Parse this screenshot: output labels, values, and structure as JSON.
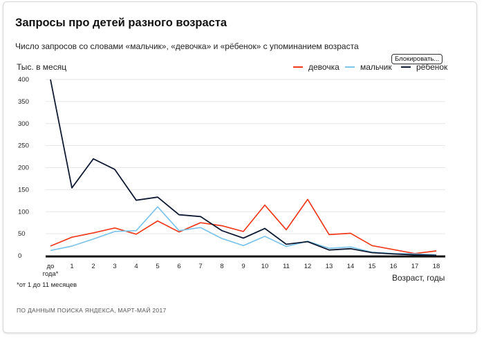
{
  "title": "Запросы про детей разного возраста",
  "subtitle": "Число запросов со словами «мальчик», «девочка» и «рёбенок» с упоминанием возраста",
  "block_button": "Блокировать...",
  "footnote": "*от 1 до 11 месяцев",
  "source": "ПО ДАННЫМ ПОИСКА ЯНДЕКСА, МАРТ-МАЙ 2017",
  "chart_data": {
    "type": "line",
    "ylabel": "Тыс. в месяц",
    "xlabel": "Возраст, годы",
    "ylim": [
      0,
      400
    ],
    "yticks": [
      "0",
      "50",
      "100",
      "150",
      "200",
      "250",
      "300",
      "350",
      "400"
    ],
    "categories": [
      "до года*",
      "1",
      "2",
      "3",
      "4",
      "5",
      "6",
      "7",
      "8",
      "9",
      "10",
      "11",
      "12",
      "13",
      "14",
      "15",
      "16",
      "17",
      "18"
    ],
    "legend_position": "top-right",
    "grid": true,
    "series": [
      {
        "name": "девочка",
        "color": "#f0391a",
        "values": [
          22,
          42,
          52,
          63,
          49,
          79,
          54,
          75,
          68,
          55,
          115,
          59,
          128,
          48,
          51,
          23,
          14,
          5,
          11
        ]
      },
      {
        "name": "мальчик",
        "color": "#7cc4ea",
        "values": [
          12,
          22,
          38,
          55,
          57,
          111,
          57,
          64,
          39,
          23,
          44,
          21,
          33,
          17,
          20,
          8,
          5,
          4,
          2
        ]
      },
      {
        "name": "рёбенок",
        "color": "#0f1a33",
        "values": [
          400,
          154,
          220,
          196,
          126,
          133,
          93,
          89,
          57,
          40,
          62,
          26,
          32,
          13,
          16,
          7,
          4,
          2,
          1
        ]
      }
    ]
  }
}
